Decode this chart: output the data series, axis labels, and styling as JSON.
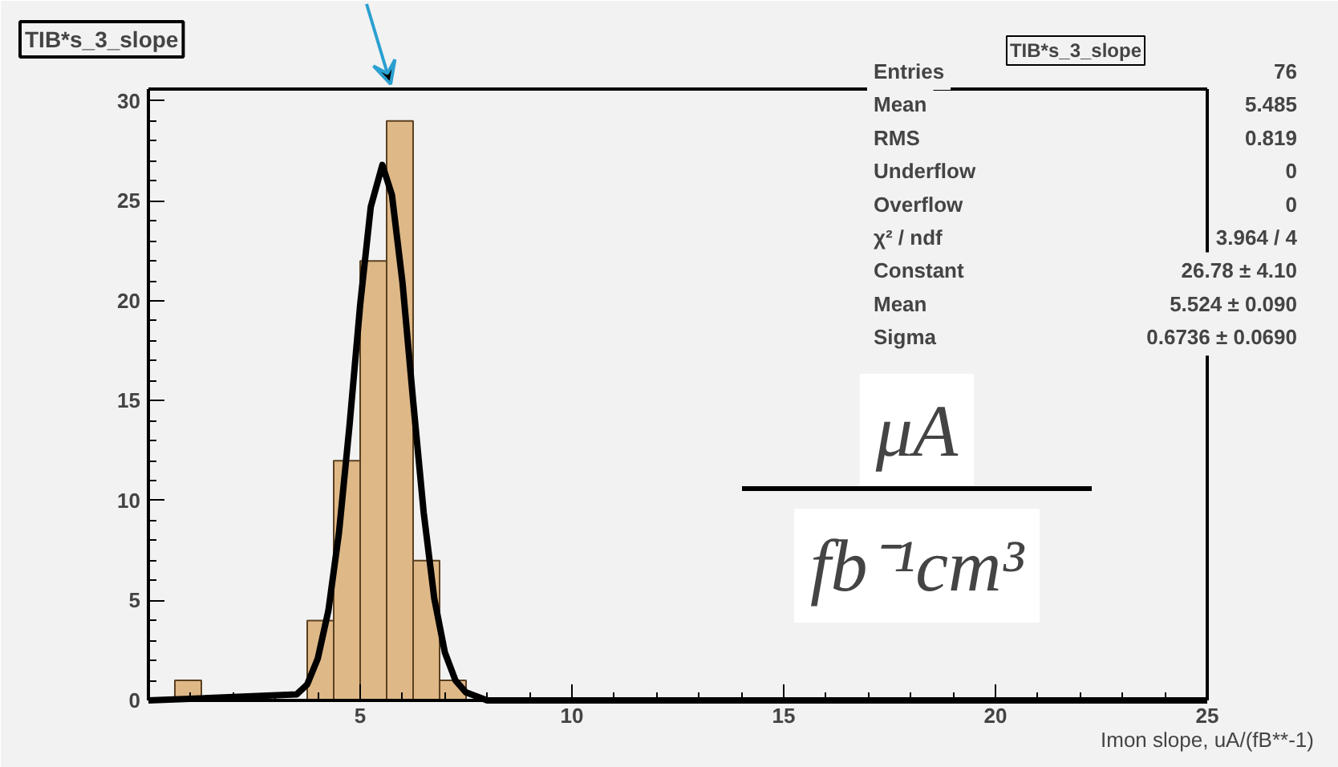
{
  "chart_data": {
    "type": "histogram",
    "title": "TIB*s_3_slope",
    "xlabel": "Imon slope, uA/(fB**-1)",
    "bins": [
      0,
      0.625,
      1.25,
      1.875,
      2.5,
      3.125,
      3.75,
      4.375,
      5,
      5.625,
      6.25,
      6.875,
      7.5,
      8.125,
      8.75,
      9.375,
      10,
      10.625,
      11.25,
      11.875,
      12.5,
      13.125,
      13.75,
      14.375,
      15,
      15.625,
      16.25,
      16.875,
      17.5,
      18.125,
      18.75,
      19.375,
      20,
      20.625,
      21.25,
      21.875,
      22.5,
      23.125,
      23.75,
      24.375,
      25
    ],
    "series": [
      {
        "type": "histogram",
        "color": "#deb887",
        "values": [
          0,
          1,
          0,
          0,
          0,
          0,
          4,
          12,
          22,
          29,
          7,
          1,
          0,
          0,
          0,
          0,
          0,
          0,
          0,
          0,
          0,
          0,
          0,
          0,
          0,
          0,
          0,
          0,
          0,
          0,
          0,
          0,
          0,
          0,
          0,
          0,
          0,
          0,
          0,
          0
        ]
      },
      {
        "type": "line",
        "color": "#000000",
        "x": [
          0,
          3.5,
          3.75,
          4,
          4.25,
          4.5,
          4.75,
          5,
          5.25,
          5.524,
          5.75,
          6,
          6.25,
          6.5,
          6.75,
          7,
          7.25,
          7.5,
          8,
          25
        ],
        "values": [
          0,
          0.3,
          0.8,
          2.1,
          4.5,
          8.4,
          13.8,
          19.8,
          24.7,
          26.8,
          25.3,
          20.9,
          15,
          9.4,
          5.1,
          2.4,
          1,
          0.4,
          0,
          0
        ]
      }
    ],
    "xlim": [
      0,
      25
    ],
    "xticks": [
      5,
      10,
      15,
      20,
      25
    ],
    "ylim": [
      0,
      30.6
    ],
    "yticks": [
      0,
      5,
      10,
      15,
      20,
      25,
      30
    ],
    "annotations": [
      "TIB*s_3_slope",
      "Entries",
      "76",
      "Mean",
      "5.485",
      "RMS",
      "0.819",
      "Underflow",
      "0",
      "Overflow",
      "0",
      "χ² / ndf",
      "3.964 / 4",
      "Constant",
      "26.78 ± 4.10",
      "Mean",
      "5.524 ± 0.090",
      "Sigma",
      "0.6736 ± 0.0690",
      "μA",
      "fb⁻¹cm³"
    ]
  }
}
